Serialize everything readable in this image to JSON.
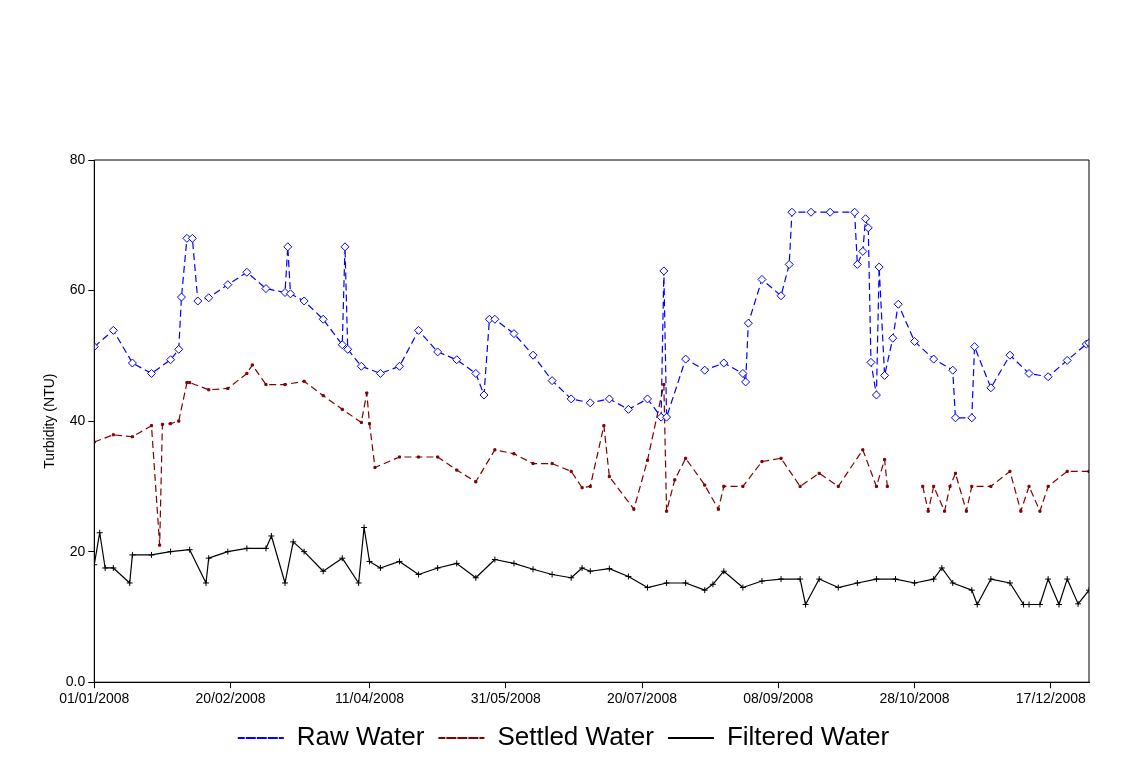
{
  "chart_data": {
    "type": "line",
    "ylabel": "Turbidity (NTU)",
    "xlim": [
      "2008-01-01",
      "2008-12-31"
    ],
    "xticks": [
      {
        "value": "2008-01-01",
        "label": "01/01/2008"
      },
      {
        "value": "2008-02-20",
        "label": "20/02/2008"
      },
      {
        "value": "2008-04-11",
        "label": "11/04/2008"
      },
      {
        "value": "2008-05-31",
        "label": "31/05/2008"
      },
      {
        "value": "2008-07-20",
        "label": "20/07/2008"
      },
      {
        "value": "2008-09-08",
        "label": "08/09/2008"
      },
      {
        "value": "2008-10-28",
        "label": "28/10/2008"
      },
      {
        "value": "2008-12-17",
        "label": "17/12/2008"
      }
    ],
    "ylim": [
      0,
      80
    ],
    "yticks": [
      {
        "value": 0,
        "label": "0.0"
      },
      20,
      40,
      60,
      80
    ],
    "grid": false,
    "legend": "bottom",
    "series": [
      {
        "name": "Raw Water",
        "color": "#0000ff",
        "marker": "diamond",
        "line_style": "dashed",
        "x": [
          "2008-01-01",
          "2008-01-08",
          "2008-01-15",
          "2008-01-22",
          "2008-01-29",
          "2008-02-01",
          "2008-02-02",
          "2008-02-04",
          "2008-02-06",
          "2008-02-08",
          "2008-02-12",
          "2008-02-19",
          "2008-02-26",
          "2008-03-04",
          "2008-03-11",
          "2008-03-12",
          "2008-03-13",
          "2008-03-18",
          "2008-03-25",
          "2008-04-01",
          "2008-04-02",
          "2008-04-03",
          "2008-04-08",
          "2008-04-15",
          "2008-04-22",
          "2008-04-29",
          "2008-05-06",
          "2008-05-13",
          "2008-05-20",
          "2008-05-23",
          "2008-05-25",
          "2008-05-27",
          "2008-06-03",
          "2008-06-10",
          "2008-06-17",
          "2008-06-24",
          "2008-07-01",
          "2008-07-08",
          "2008-07-15",
          "2008-07-22",
          "2008-07-27",
          "2008-07-28",
          "2008-07-29",
          "2008-08-05",
          "2008-08-12",
          "2008-08-19",
          "2008-08-26",
          "2008-08-27",
          "2008-08-28",
          "2008-09-02",
          "2008-09-09",
          "2008-09-12",
          "2008-09-13",
          "2008-09-20",
          "2008-09-27",
          "2008-10-06",
          "2008-10-07",
          "2008-10-09",
          "2008-10-10",
          "2008-10-11",
          "2008-10-12",
          "2008-10-14",
          "2008-10-15",
          "2008-10-17",
          "2008-10-20",
          "2008-10-22",
          "2008-10-28",
          "2008-11-04",
          "2008-11-11",
          "2008-11-12",
          "2008-11-18",
          "2008-11-19",
          "2008-11-25",
          "2008-12-02",
          "2008-12-09",
          "2008-12-16",
          "2008-12-23",
          "2008-12-30",
          "2008-12-31"
        ],
        "values": [
          51.4,
          53.9,
          48.9,
          47.3,
          49.4,
          51,
          59,
          68,
          68,
          58.4,
          58.9,
          60.9,
          62.8,
          60.3,
          59.7,
          66.7,
          59.5,
          58.4,
          55.6,
          51.7,
          66.7,
          51,
          48.4,
          47.3,
          48.4,
          53.9,
          50.6,
          49.4,
          47.3,
          44,
          55.6,
          55.6,
          53.4,
          50.1,
          46.2,
          43.4,
          42.8,
          43.4,
          41.8,
          43.4,
          40.6,
          63,
          40.6,
          49.5,
          47.8,
          48.9,
          47.3,
          46,
          55,
          61.7,
          59.2,
          64,
          72,
          72,
          72,
          72,
          64,
          66,
          71,
          69.6,
          49,
          44,
          63.6,
          47,
          52.7,
          57.9,
          52.2,
          49.5,
          47.8,
          40.5,
          40.5,
          51.4,
          45.1,
          50.1,
          47.3,
          46.8,
          49.3,
          51.8,
          52
        ]
      },
      {
        "name": "Settled Water",
        "color": "#800000",
        "marker": "square",
        "line_style": "dashed",
        "x": [
          "2008-01-01",
          "2008-01-08",
          "2008-01-15",
          "2008-01-22",
          "2008-01-25",
          "2008-01-26",
          "2008-01-29",
          "2008-02-01",
          "2008-02-04",
          "2008-02-05",
          "2008-02-12",
          "2008-02-19",
          "2008-02-26",
          "2008-02-28",
          "2008-03-04",
          "2008-03-11",
          "2008-03-18",
          "2008-03-25",
          "2008-04-01",
          "2008-04-08",
          "2008-04-10",
          "2008-04-11",
          "2008-04-13",
          "2008-04-22",
          "2008-04-29",
          "2008-05-06",
          "2008-05-13",
          "2008-05-20",
          "2008-05-27",
          "2008-06-03",
          "2008-06-10",
          "2008-06-17",
          "2008-06-24",
          "2008-06-28",
          "2008-07-01",
          "2008-07-06",
          "2008-07-08",
          "2008-07-17",
          "2008-07-22",
          "2008-07-28",
          "2008-07-29",
          "2008-08-01",
          "2008-08-05",
          "2008-08-12",
          "2008-08-17",
          "2008-08-19",
          "2008-08-26",
          "2008-09-02",
          "2008-09-09",
          "2008-09-16",
          "2008-09-23",
          "2008-09-30",
          "2008-10-09",
          "2008-10-14",
          "2008-10-17",
          "2008-10-18",
          "2008-10-25",
          "2008-10-31",
          "2008-11-02",
          "2008-11-04",
          "2008-11-08",
          "2008-11-10",
          "2008-11-12",
          "2008-11-16",
          "2008-11-18",
          "2008-11-25",
          "2008-12-02",
          "2008-12-06",
          "2008-12-09",
          "2008-12-13",
          "2008-12-16",
          "2008-12-23",
          "2008-12-31"
        ],
        "values": [
          36.8,
          37.9,
          37.6,
          39.3,
          21,
          39.5,
          39.6,
          40,
          45.9,
          45.9,
          44.8,
          45,
          47.3,
          48.6,
          45.6,
          45.6,
          46.1,
          43.9,
          41.8,
          39.8,
          44.3,
          39.6,
          32.9,
          34.5,
          34.5,
          34.5,
          32.5,
          30.7,
          35.6,
          35,
          33.5,
          33.5,
          32.3,
          29.8,
          30,
          39.3,
          31.5,
          26.5,
          34,
          45.6,
          26.2,
          31,
          34.3,
          30.2,
          26.5,
          30,
          30,
          33.8,
          34.3,
          30,
          32,
          30,
          35.6,
          30,
          34.1,
          30,
          null,
          30,
          26.2,
          30,
          26.2,
          30,
          32,
          26.2,
          30,
          30,
          32.3,
          26.2,
          30,
          26.2,
          30,
          32.3,
          32.3
        ]
      },
      {
        "name": "Filtered Water",
        "color": "#000000",
        "marker": "cross",
        "line_style": "solid",
        "x": [
          "2008-01-01",
          "2008-01-03",
          "2008-01-05",
          "2008-01-08",
          "2008-01-14",
          "2008-01-15",
          "2008-01-22",
          "2008-01-29",
          "2008-02-05",
          "2008-02-11",
          "2008-02-12",
          "2008-02-19",
          "2008-02-26",
          "2008-03-04",
          "2008-03-06",
          "2008-03-11",
          "2008-03-14",
          "2008-03-18",
          "2008-03-25",
          "2008-04-01",
          "2008-04-07",
          "2008-04-09",
          "2008-04-11",
          "2008-04-15",
          "2008-04-22",
          "2008-04-29",
          "2008-05-06",
          "2008-05-13",
          "2008-05-20",
          "2008-05-27",
          "2008-06-03",
          "2008-06-10",
          "2008-06-17",
          "2008-06-24",
          "2008-06-28",
          "2008-07-01",
          "2008-07-08",
          "2008-07-15",
          "2008-07-22",
          "2008-07-29",
          "2008-08-05",
          "2008-08-12",
          "2008-08-15",
          "2008-08-19",
          "2008-08-26",
          "2008-09-02",
          "2008-09-09",
          "2008-09-16",
          "2008-09-18",
          "2008-09-23",
          "2008-09-30",
          "2008-10-07",
          "2008-10-14",
          "2008-10-21",
          "2008-10-28",
          "2008-11-04",
          "2008-11-07",
          "2008-11-11",
          "2008-11-18",
          "2008-11-20",
          "2008-11-25",
          "2008-12-02",
          "2008-12-07",
          "2008-12-09",
          "2008-12-13",
          "2008-12-16",
          "2008-12-20",
          "2008-12-23",
          "2008-12-27",
          "2008-12-31"
        ],
        "values": [
          18,
          22.9,
          17.5,
          17.5,
          15.2,
          19.5,
          19.5,
          20,
          20.3,
          15.2,
          19,
          20,
          20.5,
          20.5,
          22.4,
          15.2,
          21.5,
          20,
          17,
          19,
          15.2,
          23.7,
          18.5,
          17.5,
          18.5,
          16.5,
          17.5,
          18.2,
          16,
          18.8,
          18.2,
          17.3,
          16.5,
          16,
          17.5,
          17,
          17.4,
          16.2,
          14.5,
          15.2,
          15.2,
          14.1,
          15,
          17,
          14.5,
          15.5,
          15.8,
          15.8,
          11.9,
          15.8,
          14.5,
          15.2,
          15.8,
          15.8,
          15.2,
          15.8,
          17.5,
          15.2,
          14.1,
          11.9,
          15.8,
          15.2,
          11.9,
          11.9,
          11.9,
          15.8,
          11.9,
          15.8,
          12,
          14.1
        ]
      }
    ]
  }
}
